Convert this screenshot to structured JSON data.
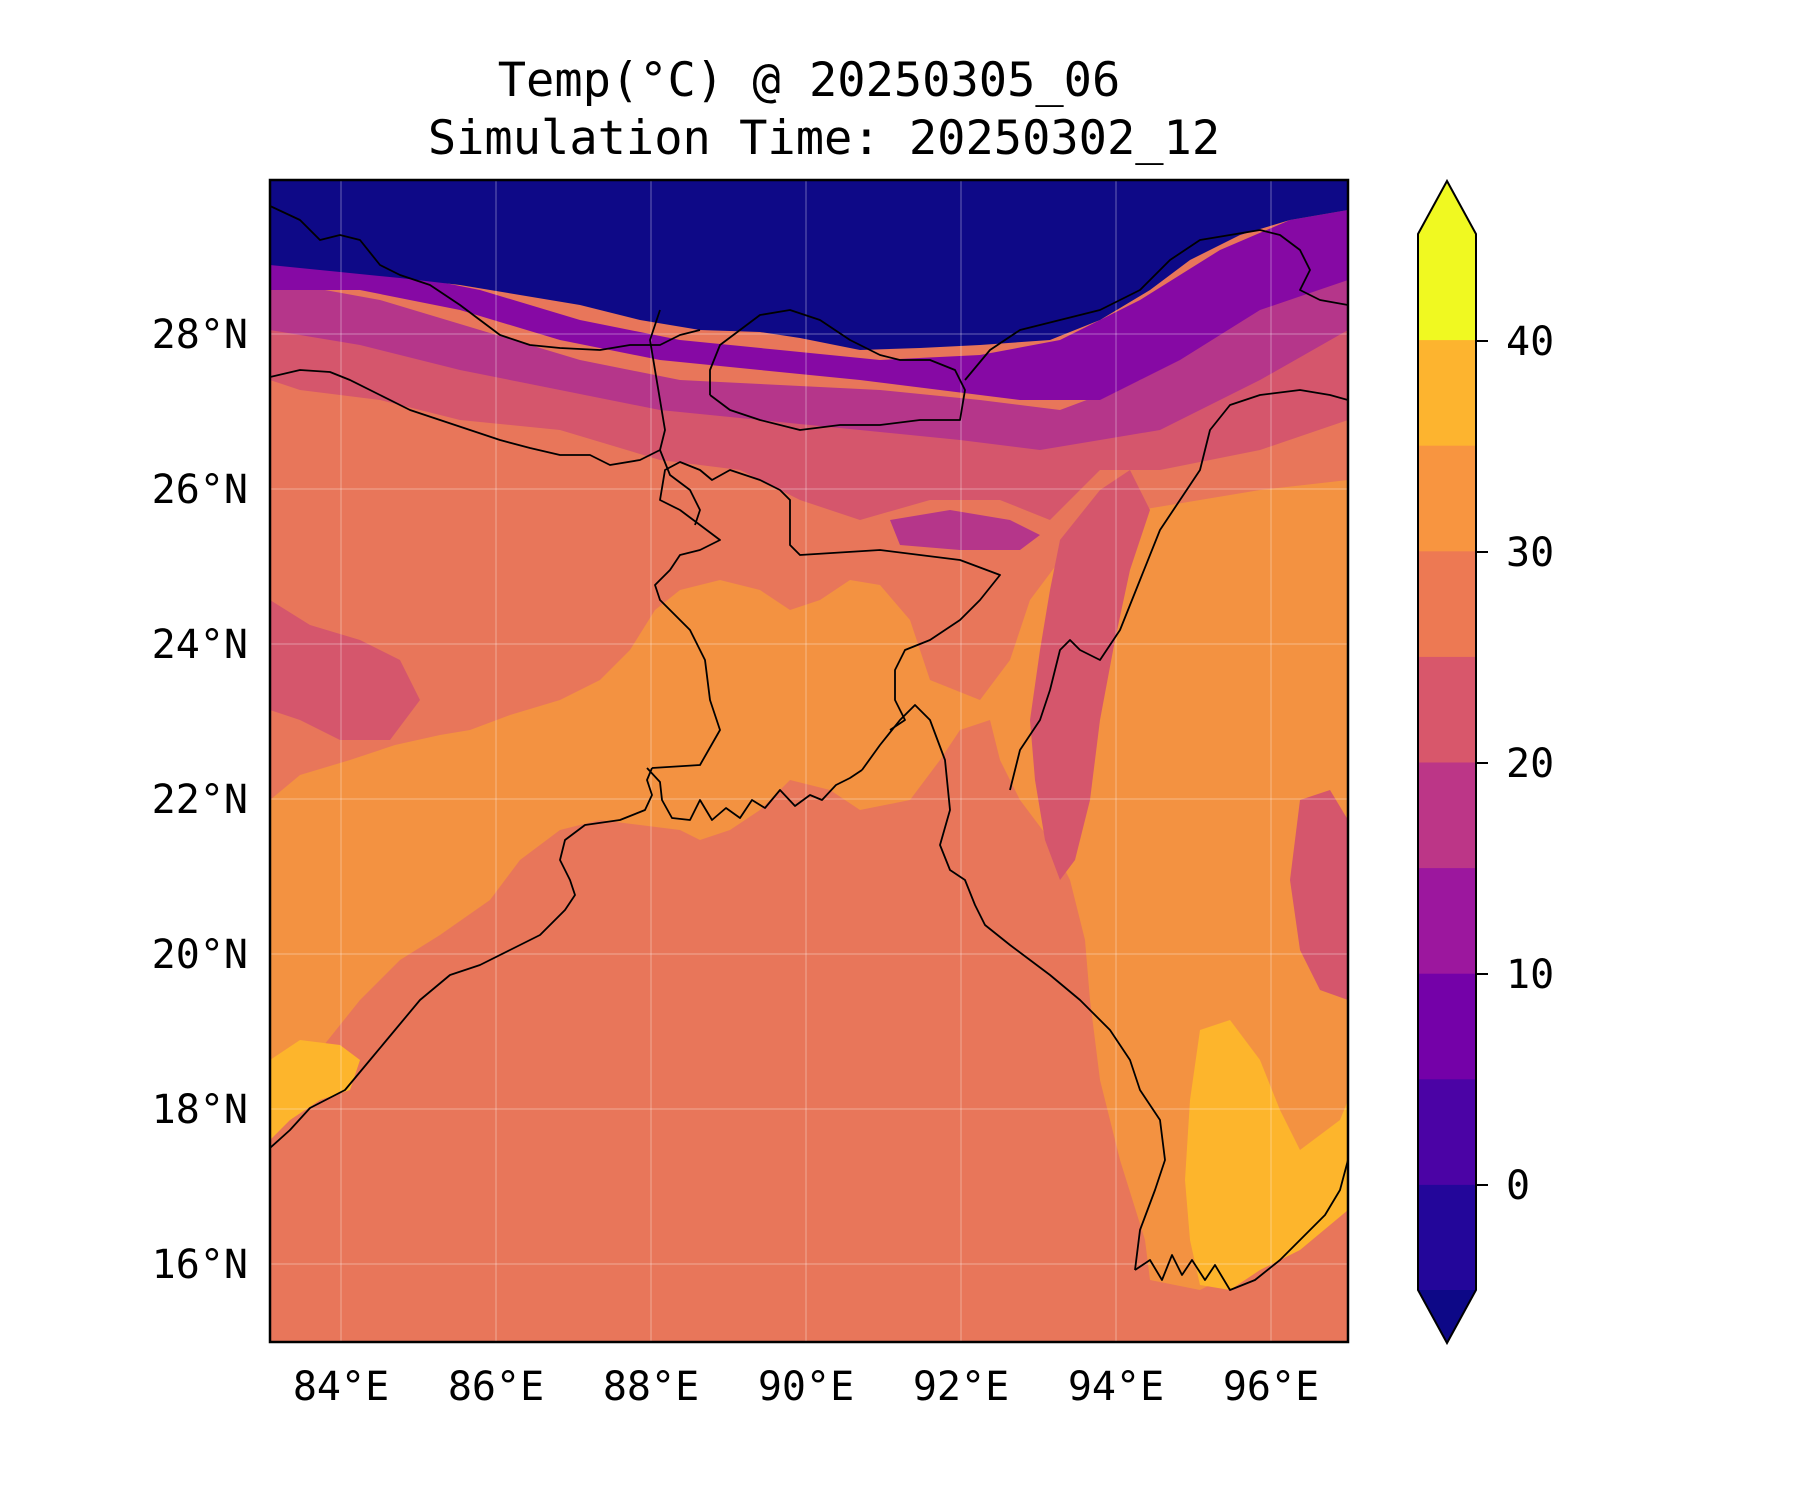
{
  "figure": {
    "title_line1": "Temp(°C) @ 20250305_06",
    "title_line2": "Simulation Time: 20250302_12"
  },
  "map": {
    "type": "filled-contour map",
    "projection": "PlateCarree",
    "lon_range": [
      83,
      97
    ],
    "lat_range": [
      15,
      30
    ],
    "gridlines": true,
    "x_tick_labels": [
      "84°E",
      "86°E",
      "88°E",
      "90°E",
      "92°E",
      "94°E",
      "96°E"
    ],
    "y_tick_labels": [
      "16°N",
      "18°N",
      "20°N",
      "22°N",
      "24°N",
      "26°N",
      "28°N"
    ],
    "colormap": "plasma",
    "colors": {
      "bay_of_bengal": "#E8765A",
      "lowlands": "#F39241",
      "hot_lowlands": "#FDB52C",
      "hills": "#D5566C",
      "mid_hills": "#B5368A",
      "high_terrain": "#8609A4",
      "himalaya": "#0E0987"
    }
  },
  "colorbar": {
    "orientation": "vertical",
    "extend": "both",
    "tick_labels": [
      "0",
      "10",
      "20",
      "30",
      "40"
    ],
    "levels": [
      -5,
      0,
      5,
      10,
      15,
      20,
      25,
      30,
      35,
      40,
      45
    ],
    "band_colors": [
      "#23069A",
      "#4B03A5",
      "#7401A8",
      "#9C179E",
      "#BC3687",
      "#D8576B",
      "#ED7953",
      "#F89540",
      "#FDB42F",
      "#F0F921"
    ],
    "under_color": "#0D0887",
    "over_color": "#F0F921"
  }
}
